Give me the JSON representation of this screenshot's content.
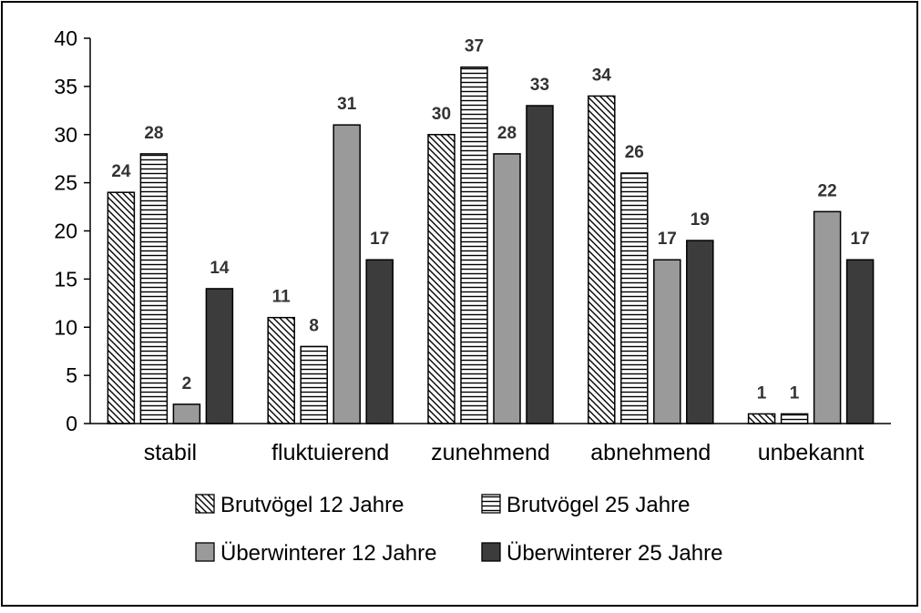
{
  "chart_data": {
    "type": "bar",
    "title": "",
    "xlabel": "",
    "ylabel": "",
    "ylim": [
      0,
      40
    ],
    "yticks": [
      0,
      5,
      10,
      15,
      20,
      25,
      30,
      35,
      40
    ],
    "grid": false,
    "legend_position": "bottom",
    "categories": [
      "stabil",
      "fluktuierend",
      "zunehmend",
      "abnehmend",
      "unbekannt"
    ],
    "series": [
      {
        "name": "Brutvögel 12 Jahre",
        "values": [
          24,
          11,
          30,
          34,
          1
        ],
        "fill": "diagonal-hatch",
        "color": "#000000"
      },
      {
        "name": "Brutvögel 25 Jahre",
        "values": [
          28,
          8,
          37,
          26,
          1
        ],
        "fill": "horizontal-hatch",
        "color": "#000000"
      },
      {
        "name": "Überwinterer 12 Jahre",
        "values": [
          2,
          31,
          28,
          17,
          22
        ],
        "fill": "solid",
        "color": "#9a9a9a"
      },
      {
        "name": "Überwinterer 25 Jahre",
        "values": [
          14,
          17,
          33,
          19,
          17
        ],
        "fill": "solid",
        "color": "#3c3c3c"
      }
    ]
  }
}
